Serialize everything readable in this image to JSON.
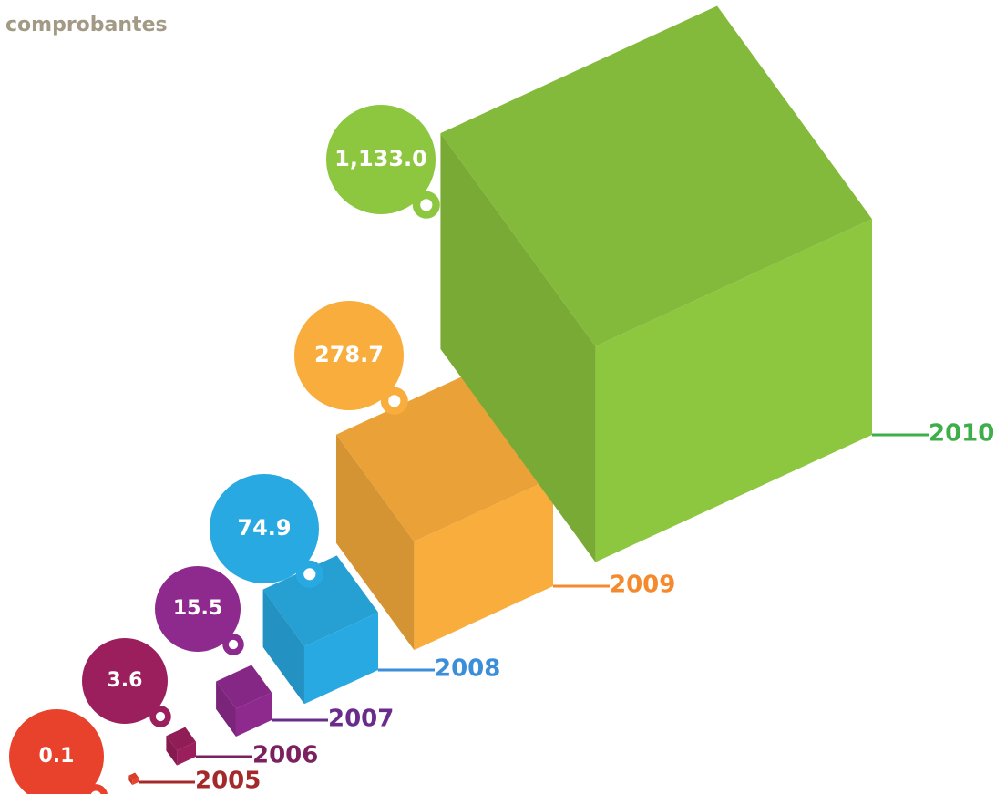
{
  "chart_data": {
    "type": "cube",
    "title": "comprobantes",
    "categories": [
      "2005",
      "2006",
      "2007",
      "2008",
      "2009",
      "2010"
    ],
    "values": [
      0.1,
      3.6,
      15.5,
      74.9,
      278.7,
      1133.0
    ],
    "value_labels": [
      "0.1",
      "3.6",
      "15.5",
      "74.9",
      "278.7",
      "1,133.0"
    ],
    "colors": [
      "#e8412c",
      "#9b1f5d",
      "#8e2a8e",
      "#29a9e1",
      "#f9ad3c",
      "#8dc63f"
    ],
    "label_colors": [
      "#a4292b",
      "#7b2160",
      "#6a2c8b",
      "#3c8ed8",
      "#f48a2d",
      "#3dae49"
    ]
  }
}
